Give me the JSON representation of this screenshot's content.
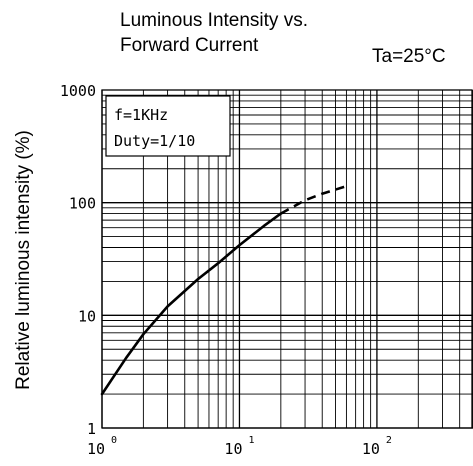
{
  "chart_data": {
    "type": "line",
    "title_line1": "Luminous Intensity vs.",
    "title_line2": "Forward Current",
    "condition": "Ta=25°C",
    "annotation_line1": "f=1KHz",
    "annotation_line2": "Duty=1/10",
    "xlabel": "",
    "ylabel": "Relative luminous intensity  (%)",
    "x_scale": "log",
    "y_scale": "log",
    "xlim": [
      1,
      500
    ],
    "ylim": [
      1,
      1000
    ],
    "grid": true,
    "x_ticks": [
      {
        "value": 1,
        "base": "10",
        "exp": "0"
      },
      {
        "value": 10,
        "base": "10",
        "exp": "1"
      },
      {
        "value": 100,
        "base": "10",
        "exp": "2"
      }
    ],
    "y_ticks": [
      {
        "value": 1,
        "label": "1"
      },
      {
        "value": 10,
        "label": "10"
      },
      {
        "value": 100,
        "label": "100"
      },
      {
        "value": 1000,
        "label": "1000"
      }
    ],
    "series": [
      {
        "style": "solid",
        "x": [
          1,
          1.5,
          2,
          3,
          5,
          7,
          10,
          15,
          20
        ],
        "y": [
          2,
          4.2,
          6.8,
          12,
          21,
          29,
          42,
          62,
          80
        ]
      },
      {
        "style": "dashed",
        "x": [
          20,
          30,
          40,
          60
        ],
        "y": [
          80,
          105,
          120,
          140
        ]
      }
    ]
  }
}
